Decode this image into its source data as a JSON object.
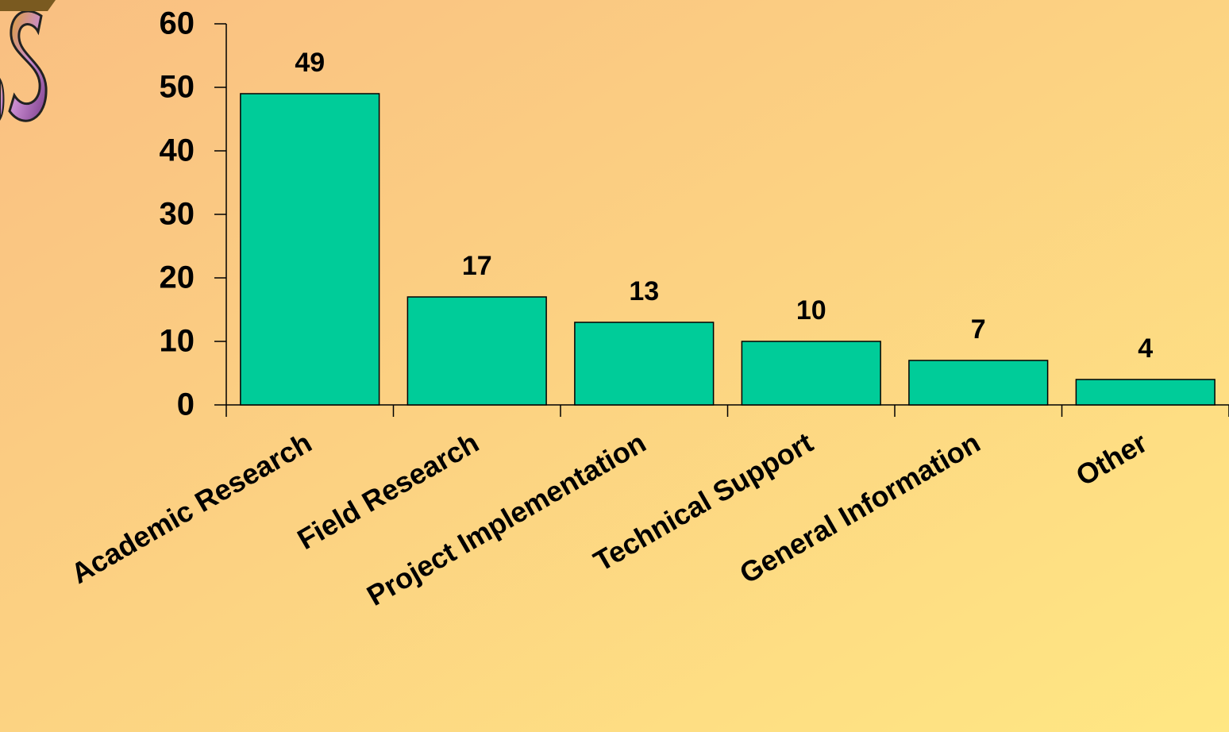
{
  "chart_data": {
    "type": "bar",
    "categories": [
      "Academic Research",
      "Field Research",
      "Project Implementation",
      "Technical Support",
      "General Information",
      "Other"
    ],
    "values": [
      49,
      17,
      13,
      10,
      7,
      4
    ],
    "color": "#00cc99",
    "ylim": [
      0,
      60
    ],
    "yticks": [
      0,
      10,
      20,
      30,
      40,
      50,
      60
    ],
    "grid": false
  }
}
